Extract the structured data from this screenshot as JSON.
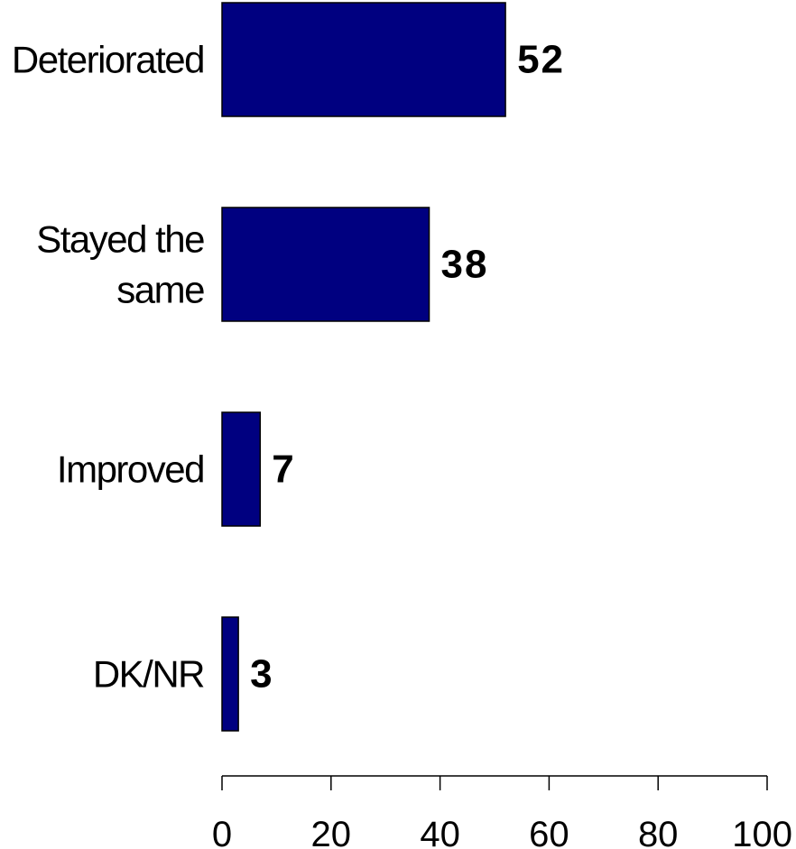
{
  "chart_data": {
    "type": "bar",
    "orientation": "horizontal",
    "categories": [
      "Deteriorated",
      "Stayed the same",
      "Improved",
      "DK/NR"
    ],
    "category_lines": [
      [
        "Deteriorated"
      ],
      [
        "Stayed the",
        "same"
      ],
      [
        "Improved"
      ],
      [
        "DK/NR"
      ]
    ],
    "values": [
      52,
      38,
      7,
      3
    ],
    "data_labels": [
      "52",
      "38",
      "7",
      "3"
    ],
    "xlim": [
      0,
      100
    ],
    "xticks": [
      0,
      20,
      40,
      60,
      80,
      100
    ],
    "tick_labels": [
      "0",
      "20",
      "40",
      "60",
      "80",
      "100"
    ],
    "title": "",
    "xlabel": "",
    "ylabel": "",
    "grid": false,
    "bar_color": "#000080",
    "bar_edge_color": "#000000"
  }
}
